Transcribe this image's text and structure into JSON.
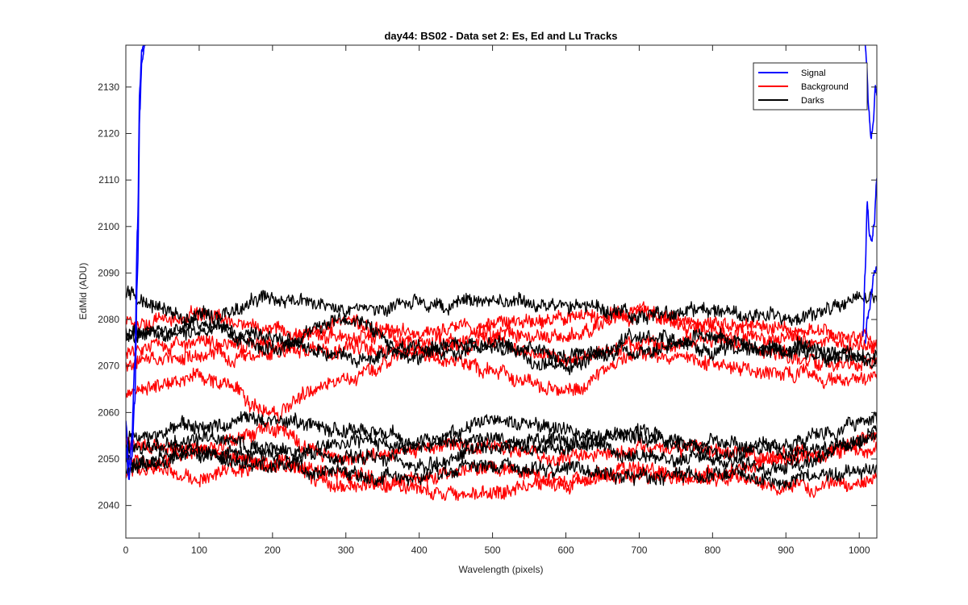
{
  "chart_data": {
    "type": "line",
    "title": "day44: BS02 - Data set 2: Es, Ed and Lu Tracks",
    "xlabel": "Wavelength (pixels)",
    "ylabel": "EdMid (ADU)",
    "xlim": [
      0,
      1024
    ],
    "ylim": [
      2033,
      2139
    ],
    "xticks": [
      0,
      100,
      200,
      300,
      400,
      500,
      600,
      700,
      800,
      900,
      1000
    ],
    "yticks": [
      2040,
      2050,
      2060,
      2070,
      2080,
      2090,
      2100,
      2110,
      2120,
      2130
    ],
    "legend": {
      "position": "top-right",
      "entries": [
        {
          "label": "Signal",
          "color": "#0000ff"
        },
        {
          "label": "Background",
          "color": "#ff0000"
        },
        {
          "label": "Darks",
          "color": "#000000"
        }
      ]
    },
    "series": [
      {
        "name": "Signal",
        "color": "#0000ff",
        "kind": "signal-left",
        "x": [
          0,
          4,
          8,
          12,
          16,
          19,
          22,
          26
        ],
        "values": [
          2052,
          2046,
          2050,
          2062,
          2090,
          2125,
          2136,
          2139
        ]
      },
      {
        "name": "Signal",
        "color": "#0000ff",
        "kind": "signal-left",
        "x": [
          0,
          4,
          8,
          12,
          16,
          19,
          22,
          26
        ],
        "values": [
          2058,
          2048,
          2054,
          2070,
          2100,
          2130,
          2138,
          2139
        ]
      },
      {
        "name": "Signal",
        "color": "#0000ff",
        "kind": "signal-right",
        "x": [
          1008,
          1010,
          1013,
          1016,
          1019,
          1022,
          1024
        ],
        "values": [
          2139,
          2135,
          2125,
          2119,
          2122,
          2130,
          2128
        ]
      },
      {
        "name": "Signal",
        "color": "#0000ff",
        "kind": "signal-right",
        "x": [
          1005,
          1008,
          1011,
          1014,
          1017,
          1020,
          1024
        ],
        "values": [
          2076,
          2090,
          2105,
          2098,
          2097,
          2100,
          2110
        ]
      },
      {
        "name": "Signal",
        "color": "#0000ff",
        "kind": "signal-right",
        "x": [
          1008,
          1011,
          1014,
          1017,
          1020,
          1024
        ],
        "values": [
          2075,
          2080,
          2082,
          2086,
          2090,
          2091
        ]
      },
      {
        "name": "Background",
        "color": "#ff0000",
        "x": [
          0,
          100,
          200,
          300,
          400,
          500,
          600,
          700,
          800,
          900,
          1024
        ],
        "values": [
          2079,
          2081,
          2078,
          2076,
          2078,
          2079,
          2080,
          2081,
          2077,
          2076,
          2074
        ]
      },
      {
        "name": "Background",
        "color": "#ff0000",
        "x": [
          0,
          100,
          200,
          300,
          400,
          500,
          600,
          700,
          800,
          900,
          1024
        ],
        "values": [
          2073,
          2076,
          2074,
          2079,
          2075,
          2077,
          2076,
          2082,
          2079,
          2078,
          2076
        ]
      },
      {
        "name": "Background",
        "color": "#ff0000",
        "x": [
          0,
          100,
          200,
          300,
          400,
          500,
          600,
          700,
          800,
          900,
          1024
        ],
        "values": [
          2070,
          2072,
          2073,
          2074,
          2073,
          2075,
          2072,
          2074,
          2076,
          2072,
          2070
        ]
      },
      {
        "name": "Background",
        "color": "#ff0000",
        "x": [
          0,
          100,
          200,
          300,
          400,
          500,
          600,
          700,
          800,
          900,
          1024
        ],
        "values": [
          2064,
          2068,
          2061,
          2067,
          2073,
          2069,
          2064,
          2072,
          2071,
          2068,
          2067
        ]
      },
      {
        "name": "Background",
        "color": "#ff0000",
        "x": [
          0,
          100,
          200,
          300,
          400,
          500,
          600,
          700,
          800,
          900,
          1024
        ],
        "values": [
          2050,
          2046,
          2049,
          2044,
          2046,
          2048,
          2045,
          2047,
          2046,
          2044,
          2045
        ]
      },
      {
        "name": "Background",
        "color": "#ff0000",
        "x": [
          0,
          100,
          200,
          300,
          400,
          500,
          600,
          700,
          800,
          900,
          1024
        ],
        "values": [
          2054,
          2052,
          2049,
          2047,
          2044,
          2043,
          2046,
          2048,
          2046,
          2051,
          2054
        ]
      },
      {
        "name": "Background",
        "color": "#ff0000",
        "x": [
          0,
          100,
          200,
          300,
          400,
          500,
          600,
          700,
          800,
          900,
          1024
        ],
        "values": [
          2047,
          2052,
          2056,
          2050,
          2052,
          2053,
          2050,
          2053,
          2052,
          2050,
          2052
        ]
      },
      {
        "name": "Darks",
        "color": "#000000",
        "x": [
          0,
          100,
          200,
          300,
          400,
          500,
          600,
          700,
          800,
          900,
          1024
        ],
        "values": [
          2085,
          2080,
          2085,
          2082,
          2083,
          2084,
          2083,
          2081,
          2082,
          2080,
          2085
        ]
      },
      {
        "name": "Darks",
        "color": "#000000",
        "x": [
          0,
          100,
          200,
          300,
          400,
          500,
          600,
          700,
          800,
          900,
          1024
        ],
        "values": [
          2076,
          2078,
          2076,
          2072,
          2074,
          2075,
          2072,
          2073,
          2076,
          2074,
          2072
        ]
      },
      {
        "name": "Darks",
        "color": "#000000",
        "x": [
          0,
          100,
          200,
          300,
          400,
          500,
          600,
          700,
          800,
          900,
          1024
        ],
        "values": [
          2077,
          2079,
          2074,
          2080,
          2072,
          2074,
          2070,
          2076,
          2074,
          2073,
          2071
        ]
      },
      {
        "name": "Darks",
        "color": "#000000",
        "x": [
          0,
          100,
          200,
          300,
          400,
          500,
          600,
          700,
          800,
          900,
          1024
        ],
        "values": [
          2055,
          2057,
          2059,
          2056,
          2054,
          2058,
          2056,
          2055,
          2054,
          2053,
          2058
        ]
      },
      {
        "name": "Darks",
        "color": "#000000",
        "x": [
          0,
          100,
          200,
          300,
          400,
          500,
          600,
          700,
          800,
          900,
          1024
        ],
        "values": [
          2049,
          2052,
          2050,
          2054,
          2053,
          2054,
          2052,
          2056,
          2051,
          2052,
          2054
        ]
      },
      {
        "name": "Darks",
        "color": "#000000",
        "x": [
          0,
          100,
          200,
          300,
          400,
          500,
          600,
          700,
          800,
          900,
          1024
        ],
        "values": [
          2052,
          2055,
          2052,
          2050,
          2049,
          2052,
          2055,
          2050,
          2050,
          2048,
          2055
        ]
      },
      {
        "name": "Darks",
        "color": "#000000",
        "x": [
          0,
          100,
          200,
          300,
          400,
          500,
          600,
          700,
          800,
          900,
          1024
        ],
        "values": [
          2048,
          2051,
          2048,
          2047,
          2046,
          2049,
          2048,
          2046,
          2047,
          2046,
          2047
        ]
      }
    ]
  }
}
